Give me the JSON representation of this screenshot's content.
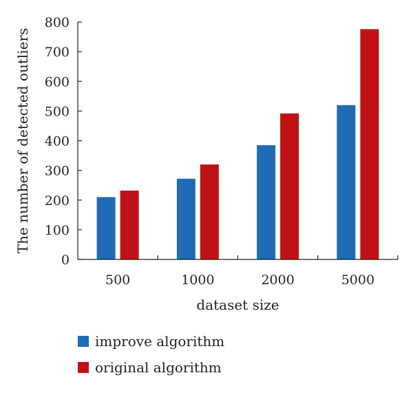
{
  "chart_data": {
    "type": "bar",
    "title": "",
    "xlabel": "dataset size",
    "ylabel": "The number of detected outliers",
    "categories": [
      "500",
      "1000",
      "2000",
      "5000"
    ],
    "ylim": [
      0,
      800
    ],
    "yticks": [
      0,
      100,
      200,
      300,
      400,
      500,
      600,
      700,
      800
    ],
    "grid": false,
    "legend_position": "bottom-left",
    "series": [
      {
        "name": "improve algorithm",
        "color": "#1f6bb5",
        "values": [
          210,
          272,
          385,
          520
        ]
      },
      {
        "name": "original algorithm",
        "color": "#c01116",
        "values": [
          232,
          320,
          492,
          776
        ]
      }
    ]
  }
}
